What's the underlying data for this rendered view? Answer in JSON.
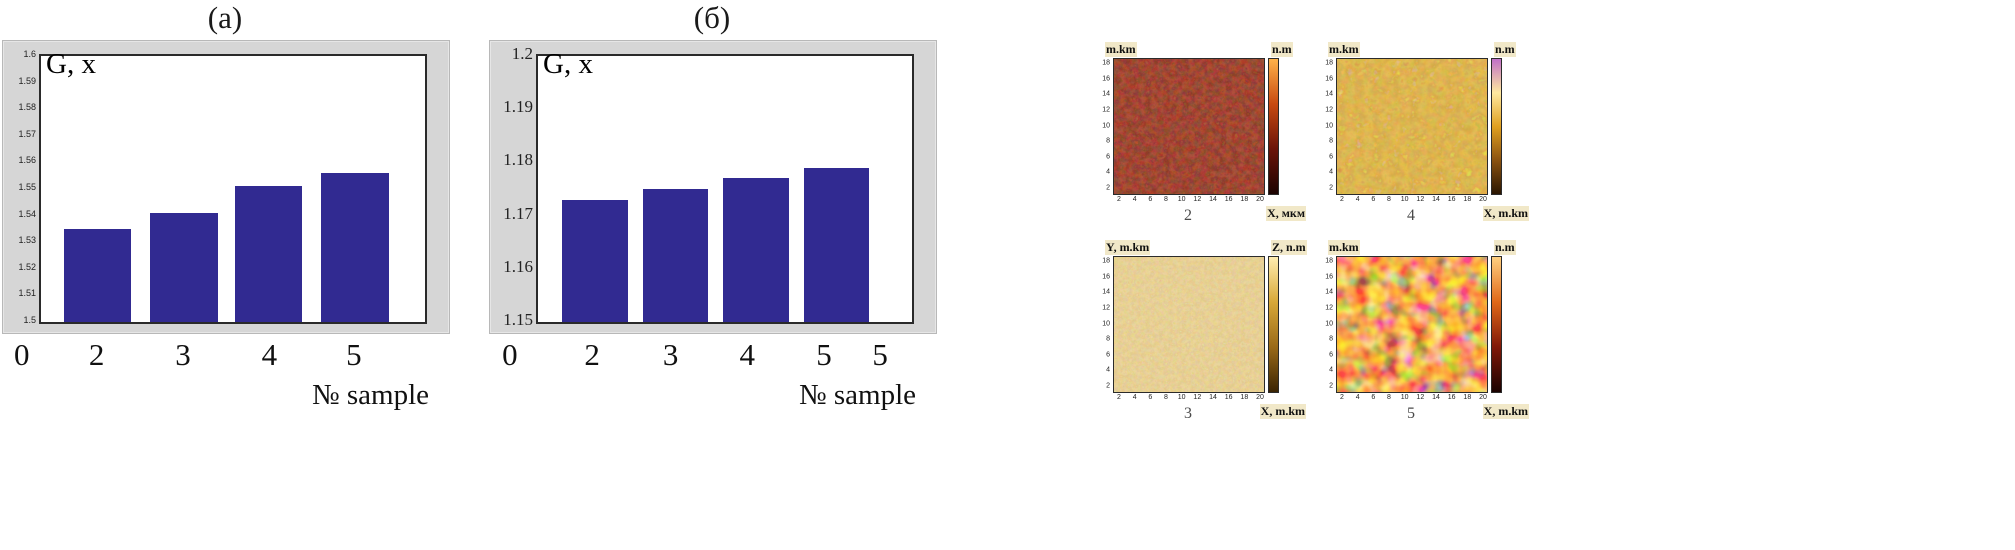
{
  "colors": {
    "bar": "#312a91",
    "chart_frame": "#d6d6d6",
    "plot_bg": "#ffffff",
    "axis": "#2a2a2a"
  },
  "panels": {
    "a": {
      "title": "(а)",
      "ylabel": "G, x",
      "xlabel": "№ sample"
    },
    "b": {
      "title": "(б)",
      "ylabel": "G, x",
      "xlabel": "№ sample"
    }
  },
  "chart_data": [
    {
      "id": "a",
      "type": "bar",
      "title": "(а)",
      "ylabel": "G, x",
      "xlabel": "№ sample",
      "ylim": [
        1.5,
        1.6
      ],
      "yticks": [
        "1.6",
        "1.59",
        "1.58",
        "1.57",
        "1.56",
        "1.55",
        "1.54",
        "1.53",
        "1.52",
        "1.51",
        "1.5"
      ],
      "categories": [
        "2",
        "3",
        "4",
        "5"
      ],
      "values": [
        1.535,
        1.541,
        1.551,
        1.556
      ],
      "xticks": [
        "0",
        "2",
        "3",
        "4",
        "5"
      ],
      "xtick_pos_pct": [
        -4.5,
        15,
        37.5,
        60,
        82
      ],
      "bar_left_pct": [
        6,
        28.5,
        50.5,
        73
      ],
      "bar_width_pct": 17.5,
      "grid": false,
      "legend": "none"
    },
    {
      "id": "b",
      "type": "bar",
      "title": "(б)",
      "ylabel": "G, x",
      "xlabel": "№ sample",
      "ylim": [
        1.15,
        1.2
      ],
      "yticks": [
        "1.2",
        "1.19",
        "1.18",
        "1.17",
        "1.16",
        "1.15"
      ],
      "categories": [
        "2",
        "3",
        "4",
        "5"
      ],
      "values": [
        1.173,
        1.175,
        1.177,
        1.179
      ],
      "xticks": [
        "0",
        "2",
        "3",
        "4",
        "5",
        "5"
      ],
      "xtick_pos_pct": [
        -7,
        15,
        36,
        56.5,
        77,
        92
      ],
      "bar_left_pct": [
        6.5,
        28,
        49.5,
        71
      ],
      "bar_width_pct": 17.5,
      "grid": false,
      "legend": "none"
    }
  ],
  "afm": {
    "images": [
      {
        "number": "2",
        "y_label": "m.km",
        "z_label": "n.m",
        "x_label": "X, мкм",
        "y_ticks": [
          "18",
          "16",
          "14",
          "12",
          "10",
          "8",
          "6",
          "4",
          "2"
        ],
        "x_ticks": [
          "2",
          "4",
          "6",
          "8",
          "10",
          "12",
          "14",
          "16",
          "18",
          "20"
        ],
        "colorbar": [
          "#1c0302",
          "#6b1408",
          "#c84a10",
          "#ffb24a"
        ]
      },
      {
        "number": "4",
        "y_label": "m.km",
        "z_label": "n.m",
        "x_label": "X, m.km",
        "y_ticks": [
          "18",
          "16",
          "14",
          "12",
          "10",
          "8",
          "6",
          "4",
          "2"
        ],
        "x_ticks": [
          "2",
          "4",
          "6",
          "8",
          "10",
          "12",
          "14",
          "16",
          "18",
          "20"
        ],
        "colorbar": [
          "#2a1602",
          "#8a5210",
          "#e0a020",
          "#ffe9a0",
          "#c070c8"
        ]
      },
      {
        "number": "3",
        "y_label": "Y, m.km",
        "z_label": "Z, n.m",
        "x_label": "X, m.km",
        "y_ticks": [
          "18",
          "16",
          "14",
          "12",
          "10",
          "8",
          "6",
          "4",
          "2"
        ],
        "x_ticks": [
          "2",
          "4",
          "6",
          "8",
          "10",
          "12",
          "14",
          "16",
          "18",
          "20"
        ],
        "colorbar": [
          "#3a2404",
          "#9a6a18",
          "#d8a838",
          "#ffedb0"
        ]
      },
      {
        "number": "5",
        "y_label": "m.km",
        "z_label": "n.m",
        "x_label": "X, m.km",
        "y_ticks": [
          "18",
          "16",
          "14",
          "12",
          "10",
          "8",
          "6",
          "4",
          "2"
        ],
        "x_ticks": [
          "2",
          "4",
          "6",
          "8",
          "10",
          "12",
          "14",
          "16",
          "18",
          "20"
        ],
        "colorbar": [
          "#1a0200",
          "#801808",
          "#e06818",
          "#ffd080"
        ]
      }
    ]
  }
}
